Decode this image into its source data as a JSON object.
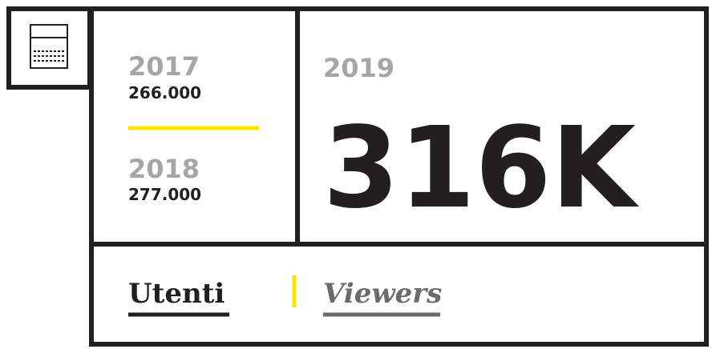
{
  "years": [
    {
      "year": "2017",
      "value": "266.000"
    },
    {
      "year": "2018",
      "value": "277.000"
    }
  ],
  "current": {
    "year": "2019",
    "value": "316K"
  },
  "tabs": [
    "Utenti",
    "Viewers"
  ]
}
